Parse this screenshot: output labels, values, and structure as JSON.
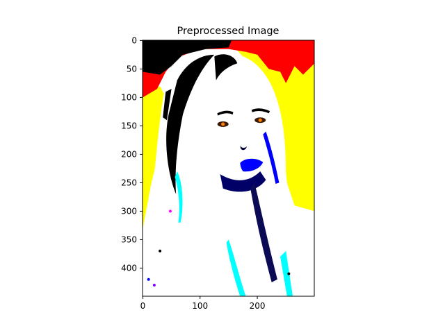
{
  "chart_data": {
    "type": "image",
    "title": "Preprocessed Image",
    "xlabel": "",
    "ylabel": "",
    "image_width": 300,
    "image_height": 450,
    "xlim": [
      -0.5,
      299.5
    ],
    "ylim": [
      449.5,
      -0.5
    ],
    "y_inverted": true,
    "x_ticks": [
      0,
      100,
      200
    ],
    "y_ticks": [
      0,
      50,
      100,
      150,
      200,
      250,
      300,
      350,
      400
    ],
    "grid": false,
    "legend": "none",
    "image_description_colors": {
      "background_top_left": "#000000",
      "background_red": "#ff0000",
      "background_yellow": "#ffff00",
      "skin_hair_highlight": "#ffffff",
      "shadow_blue": "#0000ff",
      "shadow_cyan": "#00ffff",
      "eye_accent": "#ff8000"
    }
  }
}
